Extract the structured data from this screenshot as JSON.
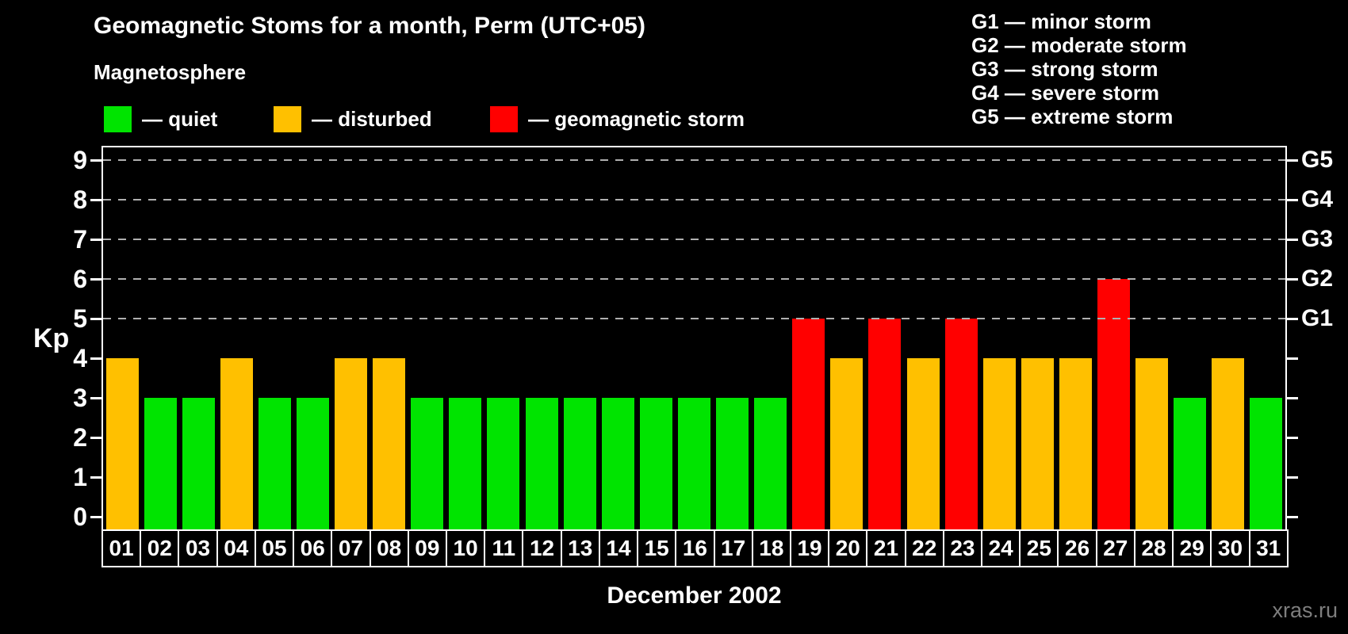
{
  "title": "Geomagnetic Stoms for a month, Perm (UTC+05)",
  "subtitle": "Magnetosphere",
  "legend": {
    "items": [
      {
        "key": "quiet",
        "label": "— quiet",
        "color": "#00e400"
      },
      {
        "key": "disturbed",
        "label": "— disturbed",
        "color": "#ffc000"
      },
      {
        "key": "storm",
        "label": "— geomagnetic storm",
        "color": "#ff0000"
      }
    ]
  },
  "g_legend": [
    "G1 — minor storm",
    "G2 — moderate storm",
    "G3 — strong storm",
    "G4 — severe storm",
    "G5 — extreme storm"
  ],
  "watermark": "xras.ru",
  "chart_data": {
    "type": "bar",
    "title": "Geomagnetic Stoms for a month, Perm (UTC+05)",
    "ylabel": "Kp",
    "xlabel": "December 2002",
    "ylim": [
      0,
      9
    ],
    "y_ticks": [
      0,
      1,
      2,
      3,
      4,
      5,
      6,
      7,
      8,
      9
    ],
    "grid_levels": [
      5,
      6,
      7,
      8,
      9
    ],
    "right_axis_labels": [
      {
        "kp": 5,
        "label": "G1"
      },
      {
        "kp": 6,
        "label": "G2"
      },
      {
        "kp": 7,
        "label": "G3"
      },
      {
        "kp": 8,
        "label": "G4"
      },
      {
        "kp": 9,
        "label": "G5"
      }
    ],
    "categories": [
      "01",
      "02",
      "03",
      "04",
      "05",
      "06",
      "07",
      "08",
      "09",
      "10",
      "11",
      "12",
      "13",
      "14",
      "15",
      "16",
      "17",
      "18",
      "19",
      "20",
      "21",
      "22",
      "23",
      "24",
      "25",
      "26",
      "27",
      "28",
      "29",
      "30",
      "31"
    ],
    "values": [
      4,
      3,
      3,
      4,
      3,
      3,
      4,
      4,
      3,
      3,
      3,
      3,
      3,
      3,
      3,
      3,
      3,
      3,
      5,
      4,
      5,
      4,
      5,
      4,
      4,
      4,
      6,
      4,
      3,
      4,
      3
    ],
    "color_rule": {
      "quiet_max_kp": 3,
      "disturbed_max_kp": 4
    },
    "colors": {
      "quiet": "#00e400",
      "disturbed": "#ffc000",
      "storm": "#ff0000"
    },
    "legend_position": "top-left",
    "grid": "dashed horizontal at storm levels only"
  }
}
